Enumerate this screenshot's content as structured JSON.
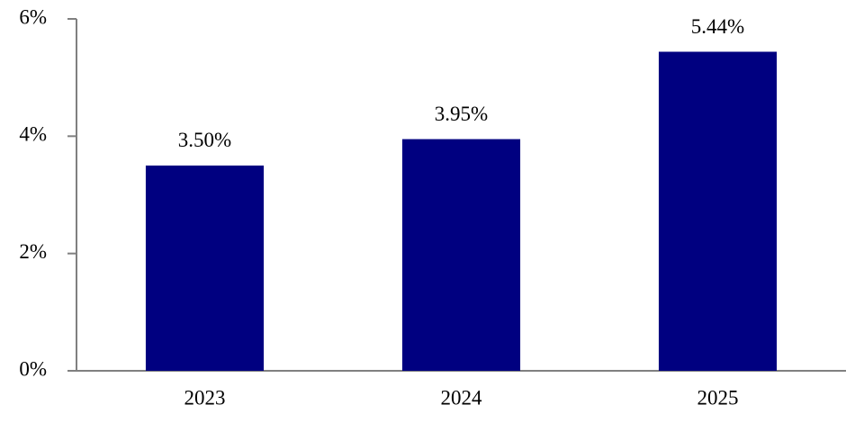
{
  "chart_data": {
    "type": "bar",
    "categories": [
      "2023",
      "2024",
      "2025"
    ],
    "values": [
      3.5,
      3.95,
      5.44
    ],
    "value_labels": [
      "3.50%",
      "3.95%",
      "5.44%"
    ],
    "color": "#000080",
    "ylim": [
      0,
      6
    ],
    "yticks": [
      {
        "value": 0,
        "label": "0%"
      },
      {
        "value": 2,
        "label": "2%"
      },
      {
        "value": 4,
        "label": "4%"
      },
      {
        "value": 6,
        "label": "6%"
      }
    ],
    "grid": false
  }
}
